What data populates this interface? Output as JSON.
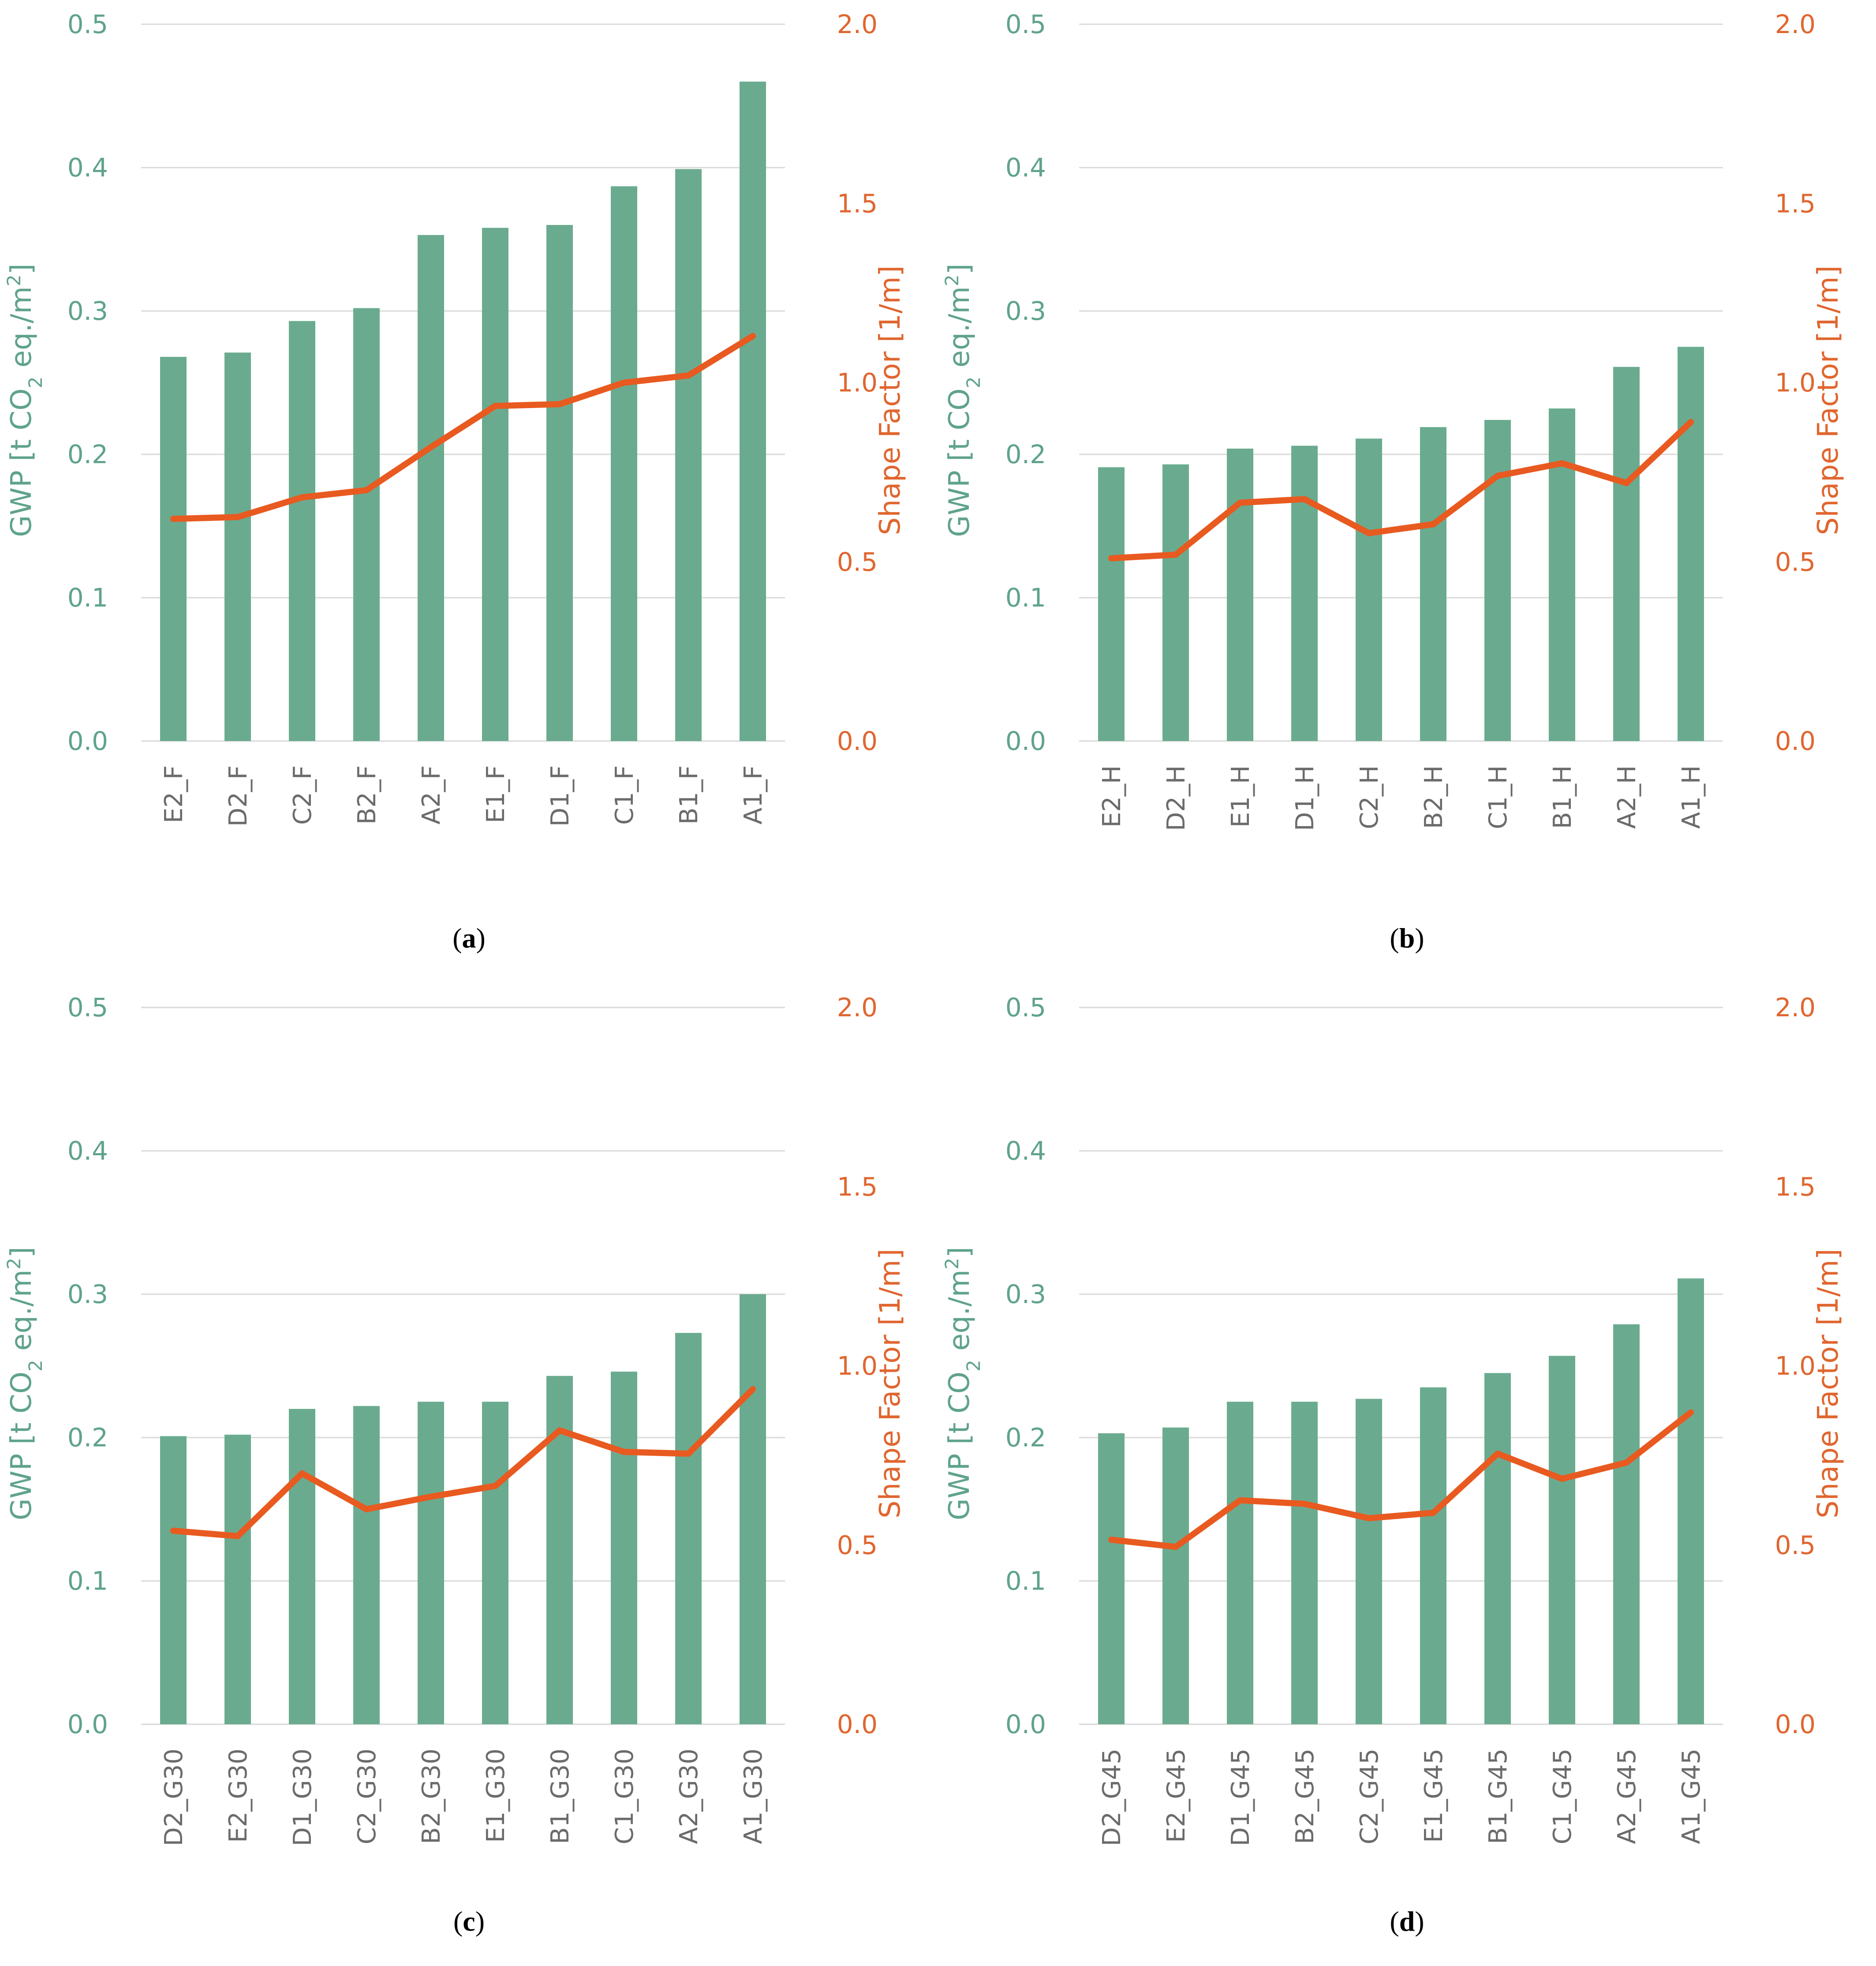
{
  "colors": {
    "bars": "#6aab8f",
    "line": "#e85a20",
    "left_axis": "#5fa38a",
    "right_axis": "#e0662f",
    "grid": "#d9d9d9"
  },
  "chart_data": [
    {
      "type": "bar+line",
      "panel": "a",
      "caption": "(a)",
      "caption_letter": "a",
      "ylabel_left_parts": [
        "GWP [t CO",
        "2",
        " eq./m",
        "2",
        "]"
      ],
      "ylabel_right": "Shape Factor [1/m]",
      "ylim_left": [
        0,
        0.5
      ],
      "ylim_right": [
        0,
        2.0
      ],
      "yticks_left": [
        "0.0",
        "0.1",
        "0.2",
        "0.3",
        "0.4",
        "0.5"
      ],
      "yticks_right": [
        "0.0",
        "0.5",
        "1.0",
        "1.5",
        "2.0"
      ],
      "categories": [
        "E2_F",
        "D2_F",
        "C2_F",
        "B2_F",
        "A2_F",
        "E1_F",
        "D1_F",
        "C1_F",
        "B1_F",
        "A1_F"
      ],
      "series": [
        {
          "name": "GWP",
          "axis": "left",
          "type": "bar",
          "values": [
            0.268,
            0.271,
            0.293,
            0.302,
            0.353,
            0.358,
            0.36,
            0.387,
            0.399,
            0.46
          ]
        },
        {
          "name": "Shape Factor",
          "axis": "right",
          "type": "line",
          "values": [
            0.62,
            0.625,
            0.68,
            0.7,
            0.82,
            0.935,
            0.94,
            1.0,
            1.02,
            1.13
          ]
        }
      ]
    },
    {
      "type": "bar+line",
      "panel": "b",
      "caption": "(b)",
      "caption_letter": "b",
      "ylabel_left_parts": [
        "GWP [t CO",
        "2",
        " eq./m",
        "2",
        "]"
      ],
      "ylabel_right": "Shape Factor [1/m]",
      "ylim_left": [
        0,
        0.5
      ],
      "ylim_right": [
        0,
        2.0
      ],
      "yticks_left": [
        "0.0",
        "0.1",
        "0.2",
        "0.3",
        "0.4",
        "0.5"
      ],
      "yticks_right": [
        "0.0",
        "0.5",
        "1.0",
        "1.5",
        "2.0"
      ],
      "categories": [
        "E2_H",
        "D2_H",
        "E1_H",
        "D1_H",
        "C2_H",
        "B2_H",
        "C1_H",
        "B1_H",
        "A2_H",
        "A1_H"
      ],
      "series": [
        {
          "name": "GWP",
          "axis": "left",
          "type": "bar",
          "values": [
            0.191,
            0.193,
            0.204,
            0.206,
            0.211,
            0.219,
            0.224,
            0.232,
            0.261,
            0.275
          ]
        },
        {
          "name": "Shape Factor",
          "axis": "right",
          "type": "line",
          "values": [
            0.51,
            0.52,
            0.665,
            0.675,
            0.58,
            0.605,
            0.74,
            0.775,
            0.72,
            0.89
          ]
        }
      ]
    },
    {
      "type": "bar+line",
      "panel": "c",
      "caption": "(c)",
      "caption_letter": "c",
      "ylabel_left_parts": [
        "GWP [t CO",
        "2",
        " eq./m",
        "2",
        "]"
      ],
      "ylabel_right": "Shape Factor [1/m]",
      "ylim_left": [
        0,
        0.5
      ],
      "ylim_right": [
        0,
        2.0
      ],
      "yticks_left": [
        "0.0",
        "0.1",
        "0.2",
        "0.3",
        "0.4",
        "0.5"
      ],
      "yticks_right": [
        "0.0",
        "0.5",
        "1.0",
        "1.5",
        "2.0"
      ],
      "categories": [
        "D2_G30",
        "E2_G30",
        "D1_G30",
        "C2_G30",
        "B2_G30",
        "E1_G30",
        "B1_G30",
        "C1_G30",
        "A2_G30",
        "A1_G30"
      ],
      "series": [
        {
          "name": "GWP",
          "axis": "left",
          "type": "bar",
          "values": [
            0.201,
            0.202,
            0.22,
            0.222,
            0.225,
            0.225,
            0.243,
            0.246,
            0.273,
            0.3
          ]
        },
        {
          "name": "Shape Factor",
          "axis": "right",
          "type": "line",
          "values": [
            0.54,
            0.525,
            0.7,
            0.6,
            0.635,
            0.665,
            0.82,
            0.76,
            0.755,
            0.935
          ]
        }
      ]
    },
    {
      "type": "bar+line",
      "panel": "d",
      "caption": "(d)",
      "caption_letter": "d",
      "ylabel_left_parts": [
        "GWP [t CO",
        "2",
        " eq./m",
        "2",
        "]"
      ],
      "ylabel_right": "Shape Factor [1/m]",
      "ylim_left": [
        0,
        0.5
      ],
      "ylim_right": [
        0,
        2.0
      ],
      "yticks_left": [
        "0.0",
        "0.1",
        "0.2",
        "0.3",
        "0.4",
        "0.5"
      ],
      "yticks_right": [
        "0.0",
        "0.5",
        "1.0",
        "1.5",
        "2.0"
      ],
      "categories": [
        "D2_G45",
        "E2_G45",
        "D1_G45",
        "B2_G45",
        "C2_G45",
        "E1_G45",
        "B1_G45",
        "C1_G45",
        "A2_G45",
        "A1_G45"
      ],
      "series": [
        {
          "name": "GWP",
          "axis": "left",
          "type": "bar",
          "values": [
            0.203,
            0.207,
            0.225,
            0.225,
            0.227,
            0.235,
            0.245,
            0.257,
            0.279,
            0.311
          ]
        },
        {
          "name": "Shape Factor",
          "axis": "right",
          "type": "line",
          "values": [
            0.515,
            0.495,
            0.625,
            0.615,
            0.575,
            0.59,
            0.755,
            0.685,
            0.73,
            0.87
          ]
        }
      ]
    }
  ]
}
